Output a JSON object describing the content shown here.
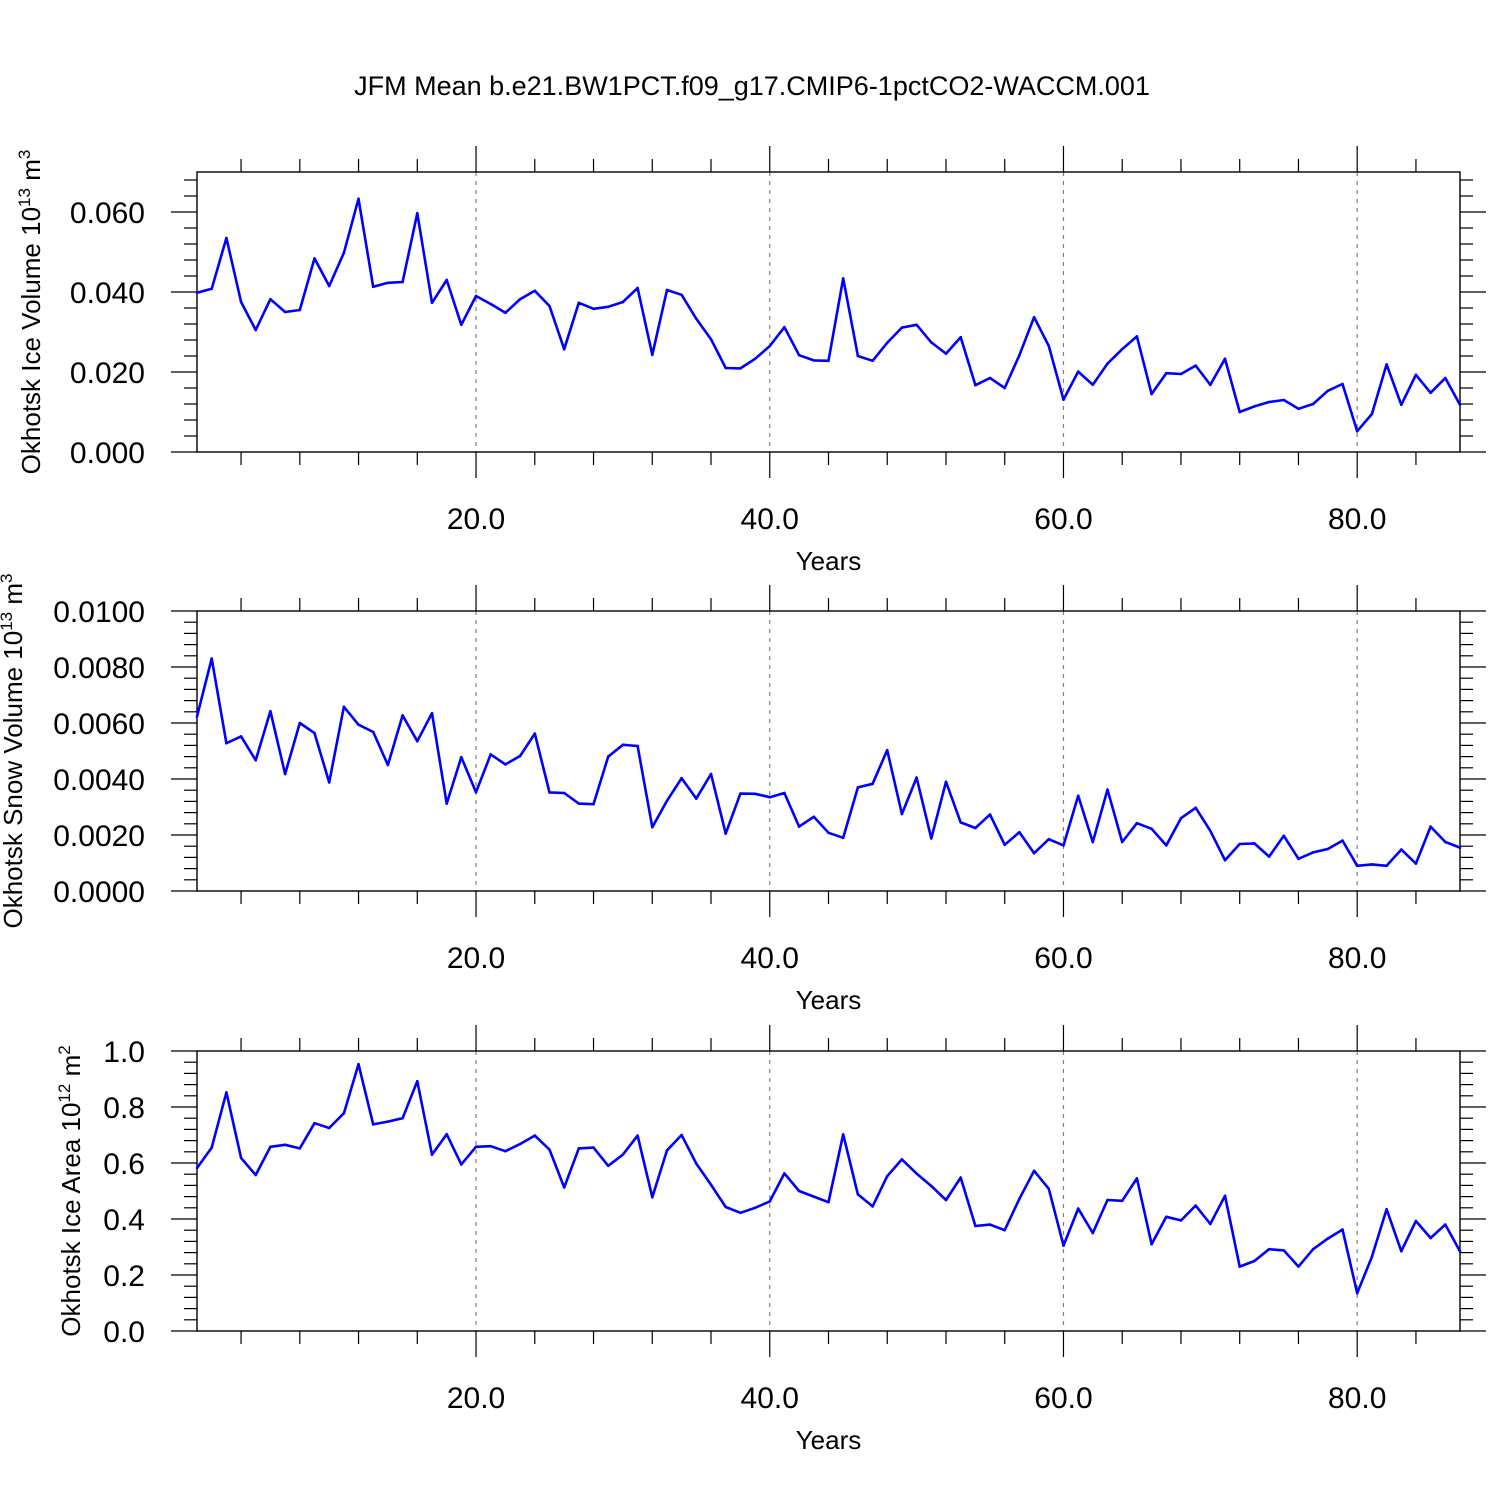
{
  "title": "JFM Mean b.e21.BW1PCT.f09_g17.CMIP6-1pctCO2-WACCM.001",
  "colors": {
    "series": "#0000ff",
    "axis": "#000000",
    "grid": "#808080",
    "background": "#ffffff"
  },
  "chart_data": [
    {
      "type": "line",
      "xlabel": "Years",
      "ylabel": {
        "text": "Okhotsk Ice Volume 10",
        "sup": "13",
        "unit": " m",
        "unit_sup": "3"
      },
      "xlim": [
        1,
        87
      ],
      "ylim": [
        0,
        0.07
      ],
      "xticks": [
        "20.0",
        "40.0",
        "60.0",
        "80.0"
      ],
      "yticks": [
        "0.000",
        "0.020",
        "0.040",
        "0.060"
      ],
      "grid": "vertical dashed at major x ticks",
      "x": [
        1,
        2,
        3,
        4,
        5,
        6,
        7,
        8,
        9,
        10,
        11,
        12,
        13,
        14,
        15,
        16,
        17,
        18,
        19,
        20,
        21,
        22,
        23,
        24,
        25,
        26,
        27,
        28,
        29,
        30,
        31,
        32,
        33,
        34,
        35,
        36,
        37,
        38,
        39,
        40,
        41,
        42,
        43,
        44,
        45,
        46,
        47,
        48,
        49,
        50,
        51,
        52,
        53,
        54,
        55,
        56,
        57,
        58,
        59,
        60,
        61,
        62,
        63,
        64,
        65,
        66,
        67,
        68,
        69,
        70,
        71,
        72,
        73,
        74,
        75,
        76,
        77,
        78,
        79,
        80,
        81,
        82,
        83,
        84,
        85,
        86,
        87
      ],
      "values": [
        0.0398,
        0.0408,
        0.0535,
        0.0375,
        0.0305,
        0.0382,
        0.035,
        0.0355,
        0.0484,
        0.0415,
        0.0498,
        0.0633,
        0.0413,
        0.0423,
        0.0425,
        0.0597,
        0.0373,
        0.043,
        0.0318,
        0.039,
        0.037,
        0.0348,
        0.0382,
        0.0403,
        0.0365,
        0.0257,
        0.0373,
        0.0358,
        0.0363,
        0.0375,
        0.041,
        0.0243,
        0.0405,
        0.0393,
        0.0333,
        0.0282,
        0.021,
        0.0209,
        0.0233,
        0.0265,
        0.0312,
        0.0242,
        0.0229,
        0.0228,
        0.0434,
        0.024,
        0.0228,
        0.0273,
        0.0311,
        0.0318,
        0.0274,
        0.0246,
        0.0287,
        0.0167,
        0.0185,
        0.016,
        0.0242,
        0.0337,
        0.0265,
        0.0131,
        0.0201,
        0.0168,
        0.0221,
        0.0257,
        0.0289,
        0.0145,
        0.0197,
        0.0195,
        0.0216,
        0.0168,
        0.0233,
        0.01,
        0.0114,
        0.0125,
        0.013,
        0.0108,
        0.012,
        0.0153,
        0.017,
        0.0052,
        0.0095,
        0.0219,
        0.0118,
        0.0193,
        0.0148,
        0.0185,
        0.0118
      ]
    },
    {
      "type": "line",
      "xlabel": "Years",
      "ylabel": {
        "text": "Okhotsk Snow Volume 10",
        "sup": "13",
        "unit": " m",
        "unit_sup": "3"
      },
      "xlim": [
        1,
        87
      ],
      "ylim": [
        0,
        0.01
      ],
      "xticks": [
        "20.0",
        "40.0",
        "60.0",
        "80.0"
      ],
      "yticks": [
        "0.0000",
        "0.0020",
        "0.0040",
        "0.0060",
        "0.0080",
        "0.0100"
      ],
      "grid": "vertical dashed at major x ticks",
      "x": [
        1,
        2,
        3,
        4,
        5,
        6,
        7,
        8,
        9,
        10,
        11,
        12,
        13,
        14,
        15,
        16,
        17,
        18,
        19,
        20,
        21,
        22,
        23,
        24,
        25,
        26,
        27,
        28,
        29,
        30,
        31,
        32,
        33,
        34,
        35,
        36,
        37,
        38,
        39,
        40,
        41,
        42,
        43,
        44,
        45,
        46,
        47,
        48,
        49,
        50,
        51,
        52,
        53,
        54,
        55,
        56,
        57,
        58,
        59,
        60,
        61,
        62,
        63,
        64,
        65,
        66,
        67,
        68,
        69,
        70,
        71,
        72,
        73,
        74,
        75,
        76,
        77,
        78,
        79,
        80,
        81,
        82,
        83,
        84,
        85,
        86,
        87
      ],
      "values": [
        0.00623,
        0.0083,
        0.00528,
        0.00552,
        0.00467,
        0.00642,
        0.00418,
        0.006,
        0.00564,
        0.00388,
        0.00658,
        0.00594,
        0.00568,
        0.0045,
        0.00627,
        0.00535,
        0.00635,
        0.00312,
        0.00478,
        0.00353,
        0.00488,
        0.00452,
        0.00482,
        0.00562,
        0.00352,
        0.0035,
        0.00312,
        0.0031,
        0.0048,
        0.00522,
        0.00518,
        0.00228,
        0.00322,
        0.00403,
        0.0033,
        0.00418,
        0.00205,
        0.00348,
        0.00347,
        0.00335,
        0.0035,
        0.0023,
        0.00265,
        0.00208,
        0.0019,
        0.0037,
        0.00383,
        0.00503,
        0.00275,
        0.00405,
        0.00188,
        0.0039,
        0.00245,
        0.00225,
        0.00273,
        0.00165,
        0.0021,
        0.00135,
        0.00185,
        0.00163,
        0.0034,
        0.00175,
        0.00362,
        0.00175,
        0.00242,
        0.00222,
        0.00163,
        0.0026,
        0.00297,
        0.00215,
        0.0011,
        0.00168,
        0.0017,
        0.00123,
        0.00197,
        0.00115,
        0.00138,
        0.0015,
        0.0018,
        0.0009,
        0.00095,
        0.0009,
        0.00148,
        0.00098,
        0.0023,
        0.00175,
        0.00155
      ]
    },
    {
      "type": "line",
      "xlabel": "Years",
      "ylabel": {
        "text": "Okhotsk Ice Area 10",
        "sup": "12",
        "unit": " m",
        "unit_sup": "2"
      },
      "xlim": [
        1,
        87
      ],
      "ylim": [
        0,
        1.0
      ],
      "xticks": [
        "20.0",
        "40.0",
        "60.0",
        "80.0"
      ],
      "yticks": [
        "0.0",
        "0.2",
        "0.4",
        "0.6",
        "0.8",
        "1.0"
      ],
      "grid": "vertical dashed at major x ticks",
      "x": [
        1,
        2,
        3,
        4,
        5,
        6,
        7,
        8,
        9,
        10,
        11,
        12,
        13,
        14,
        15,
        16,
        17,
        18,
        19,
        20,
        21,
        22,
        23,
        24,
        25,
        26,
        27,
        28,
        29,
        30,
        31,
        32,
        33,
        34,
        35,
        36,
        37,
        38,
        39,
        40,
        41,
        42,
        43,
        44,
        45,
        46,
        47,
        48,
        49,
        50,
        51,
        52,
        53,
        54,
        55,
        56,
        57,
        58,
        59,
        60,
        61,
        62,
        63,
        64,
        65,
        66,
        67,
        68,
        69,
        70,
        71,
        72,
        73,
        74,
        75,
        76,
        77,
        78,
        79,
        80,
        81,
        82,
        83,
        84,
        85,
        86,
        87
      ],
      "values": [
        0.582,
        0.655,
        0.852,
        0.618,
        0.557,
        0.658,
        0.665,
        0.652,
        0.742,
        0.725,
        0.778,
        0.953,
        0.738,
        0.748,
        0.76,
        0.892,
        0.63,
        0.703,
        0.595,
        0.658,
        0.66,
        0.642,
        0.668,
        0.698,
        0.648,
        0.513,
        0.652,
        0.655,
        0.59,
        0.63,
        0.698,
        0.478,
        0.645,
        0.7,
        0.598,
        0.522,
        0.443,
        0.422,
        0.44,
        0.463,
        0.563,
        0.5,
        0.48,
        0.46,
        0.702,
        0.488,
        0.445,
        0.553,
        0.613,
        0.562,
        0.518,
        0.468,
        0.548,
        0.375,
        0.38,
        0.36,
        0.472,
        0.572,
        0.508,
        0.305,
        0.437,
        0.35,
        0.468,
        0.465,
        0.545,
        0.31,
        0.408,
        0.395,
        0.448,
        0.382,
        0.483,
        0.23,
        0.25,
        0.292,
        0.288,
        0.23,
        0.292,
        0.33,
        0.362,
        0.135,
        0.265,
        0.435,
        0.285,
        0.393,
        0.332,
        0.38,
        0.285
      ]
    }
  ]
}
